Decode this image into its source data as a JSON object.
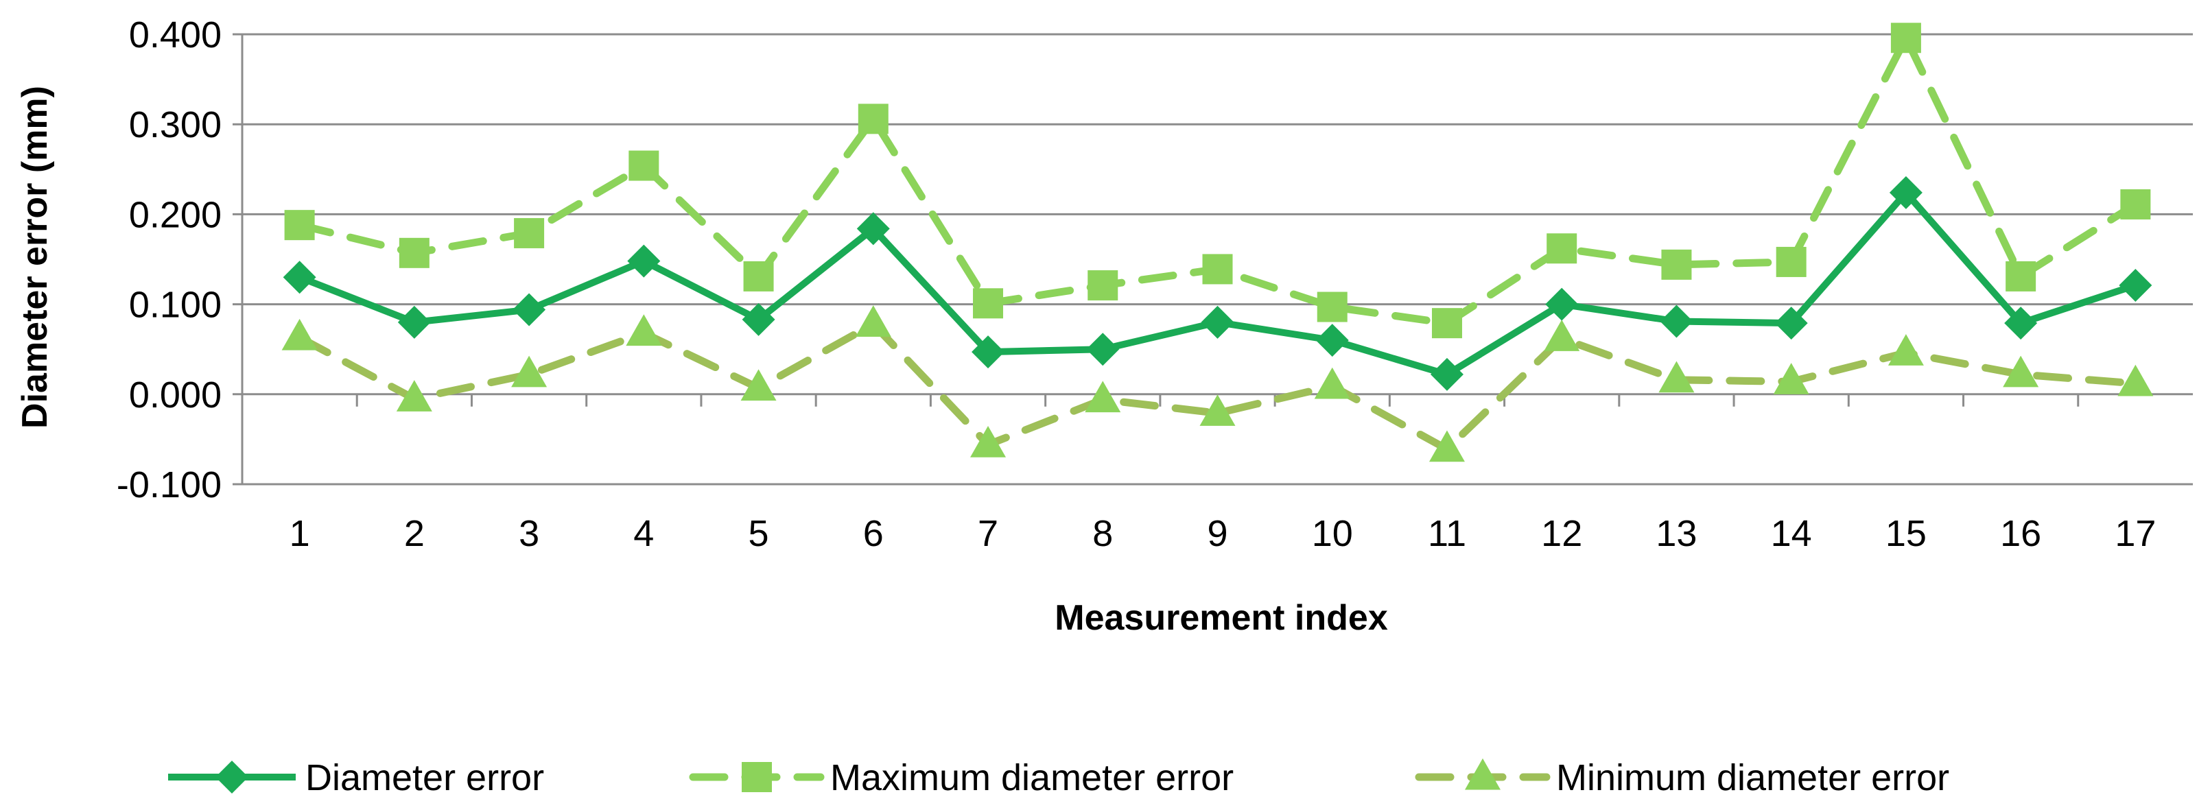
{
  "chart_data": {
    "type": "line",
    "xlabel": "Measurement index",
    "ylabel": "Diameter error (mm)",
    "categories": [
      "1",
      "2",
      "3",
      "4",
      "5",
      "6",
      "7",
      "8",
      "9",
      "10",
      "11",
      "12",
      "13",
      "14",
      "15",
      "16",
      "17"
    ],
    "ylim": [
      -0.1,
      0.4
    ],
    "yticks": [
      "-0.100",
      "0.000",
      "0.100",
      "0.200",
      "0.300",
      "0.400"
    ],
    "grid": "horizontal",
    "legend_position": "bottom",
    "series": [
      {
        "name": "Diameter error",
        "color": "#1aaa55",
        "line": "solid",
        "marker": "diamond",
        "values": [
          0.13,
          0.08,
          0.094,
          0.148,
          0.083,
          0.184,
          0.047,
          0.05,
          0.08,
          0.06,
          0.022,
          0.1,
          0.081,
          0.079,
          0.224,
          0.079,
          0.121
        ]
      },
      {
        "name": "Maximum diameter error",
        "color": "#8cd35a",
        "line": "dashed",
        "marker": "square",
        "values": [
          0.188,
          0.157,
          0.179,
          0.254,
          0.131,
          0.306,
          0.101,
          0.121,
          0.139,
          0.097,
          0.079,
          0.162,
          0.144,
          0.147,
          0.396,
          0.131,
          0.211
        ]
      },
      {
        "name": "Minimum diameter error",
        "color": "#9ebf58",
        "marker_color": "#8cd35a",
        "line": "dashed",
        "marker": "triangle",
        "values": [
          0.063,
          -0.005,
          0.022,
          0.068,
          0.007,
          0.078,
          -0.056,
          -0.006,
          -0.021,
          0.009,
          -0.061,
          0.062,
          0.016,
          0.014,
          0.046,
          0.022,
          0.012
        ]
      }
    ]
  }
}
